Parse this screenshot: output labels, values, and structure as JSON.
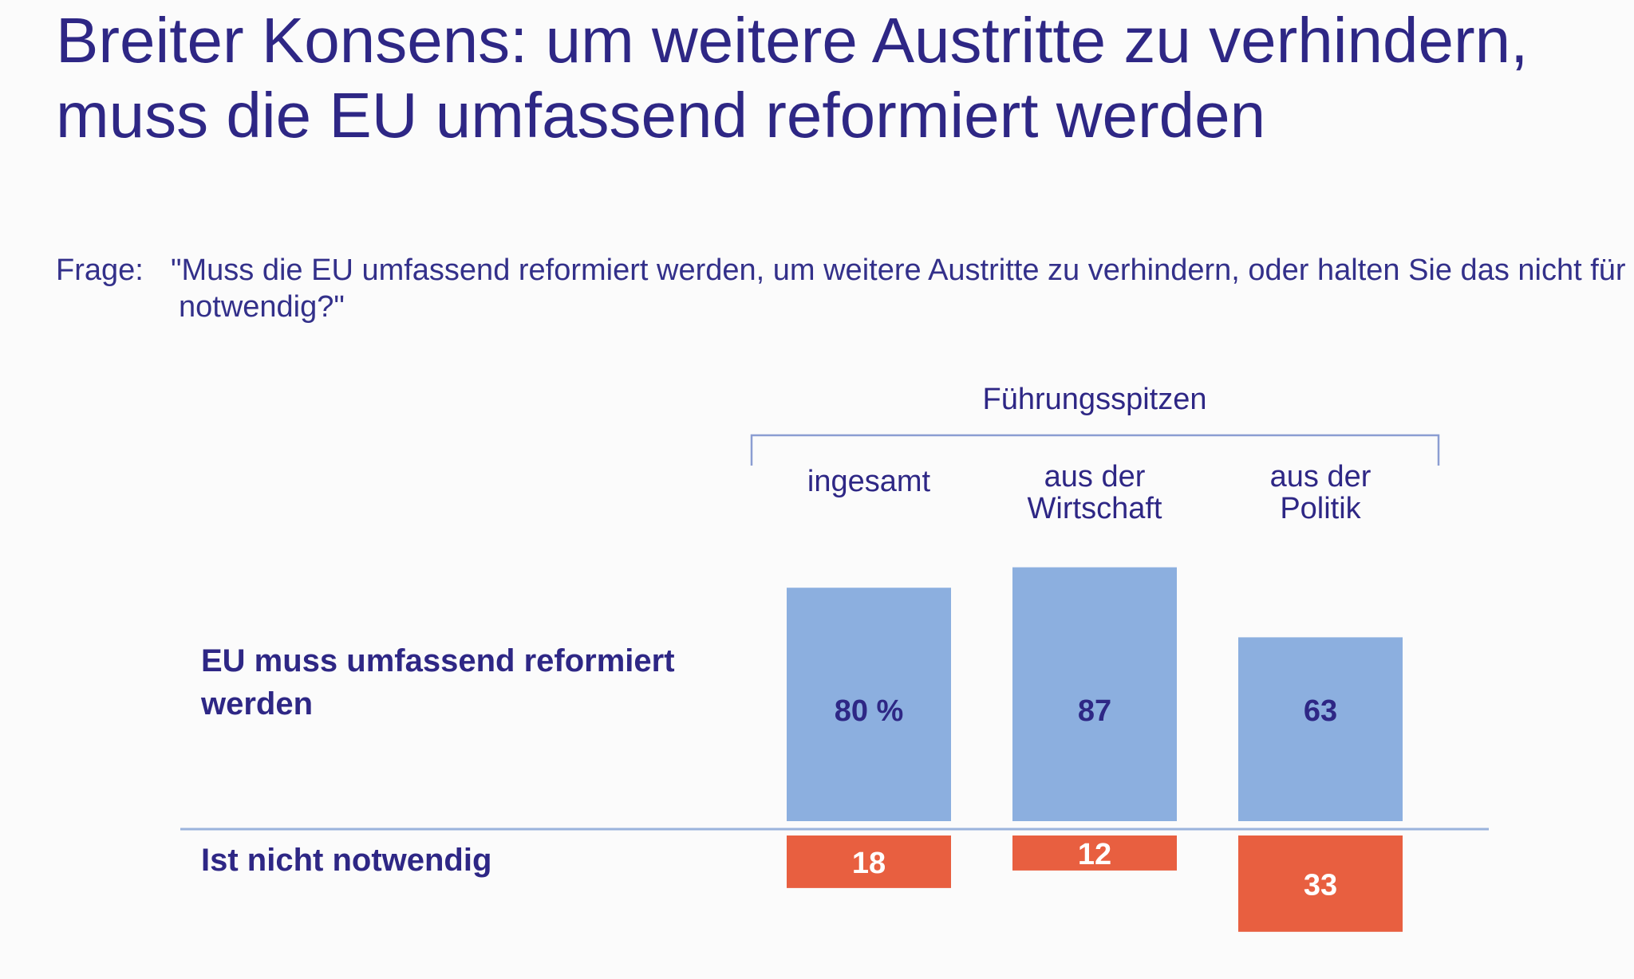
{
  "title": "Breiter Konsens: um weitere Austritte zu verhindern, muss die EU umfassend reformiert werden",
  "question": {
    "label": "Frage:",
    "text": "\"Muss die EU umfassend reformiert werden, um weitere Austritte zu verhindern, oder halten Sie das nicht für notwendig?\""
  },
  "colors": {
    "positive": "#8cafdf",
    "negative": "#e85f40",
    "text": "#2e2785",
    "bracket": "#8b9dd2"
  },
  "chart_data": {
    "type": "bar",
    "group_label": "Führungsspitzen",
    "categories": [
      [
        "ingesamt"
      ],
      [
        "aus der",
        "Wirtschaft"
      ],
      [
        "aus der",
        "Politik"
      ]
    ],
    "series": [
      {
        "name": "EU muss umfassend reformiert werden",
        "values": [
          80,
          87,
          63
        ],
        "labels": [
          "80 %",
          "87",
          "63"
        ]
      },
      {
        "name": "Ist nicht notwendig",
        "values": [
          18,
          12,
          33
        ],
        "labels": [
          "18",
          "12",
          "33"
        ]
      }
    ]
  }
}
